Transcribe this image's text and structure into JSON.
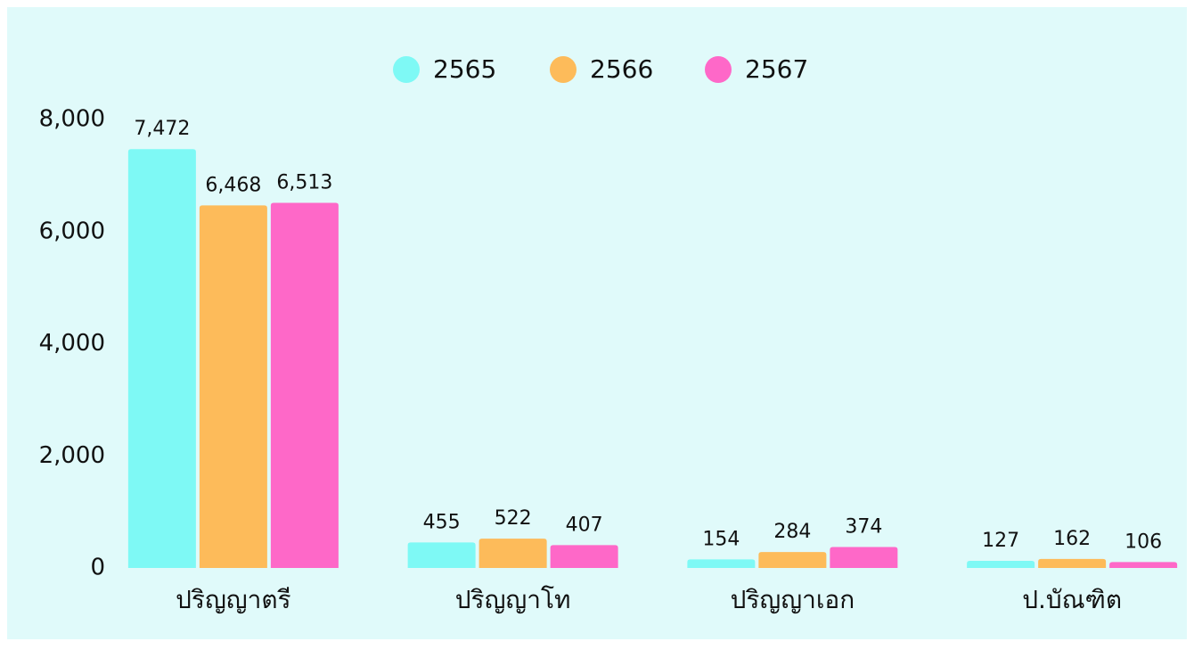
{
  "chart_data": {
    "type": "bar",
    "categories": [
      "ปริญญาตรี",
      "ปริญญาโท",
      "ปริญญาเอก",
      "ป.บัณฑิต"
    ],
    "series": [
      {
        "name": "2565",
        "color": "#7ef9f5",
        "values": [
          7472,
          455,
          154,
          127
        ],
        "value_labels": [
          "7,472",
          "455",
          "154",
          "127"
        ]
      },
      {
        "name": "2566",
        "color": "#fdbb5a",
        "values": [
          6468,
          522,
          284,
          162
        ],
        "value_labels": [
          "6,468",
          "522",
          "284",
          "162"
        ]
      },
      {
        "name": "2567",
        "color": "#fe68c8",
        "values": [
          6513,
          407,
          374,
          106
        ],
        "value_labels": [
          "6,513",
          "407",
          "374",
          "106"
        ]
      }
    ],
    "ylim": [
      0,
      8000
    ],
    "yticks": [
      0,
      {
        "value": 2000,
        "label": "2,000"
      },
      {
        "value": 4000,
        "label": "4,000"
      },
      {
        "value": 6000,
        "label": "6,000"
      },
      {
        "value": 8000,
        "label": "8,000"
      }
    ],
    "grid": false,
    "legend": "top"
  }
}
